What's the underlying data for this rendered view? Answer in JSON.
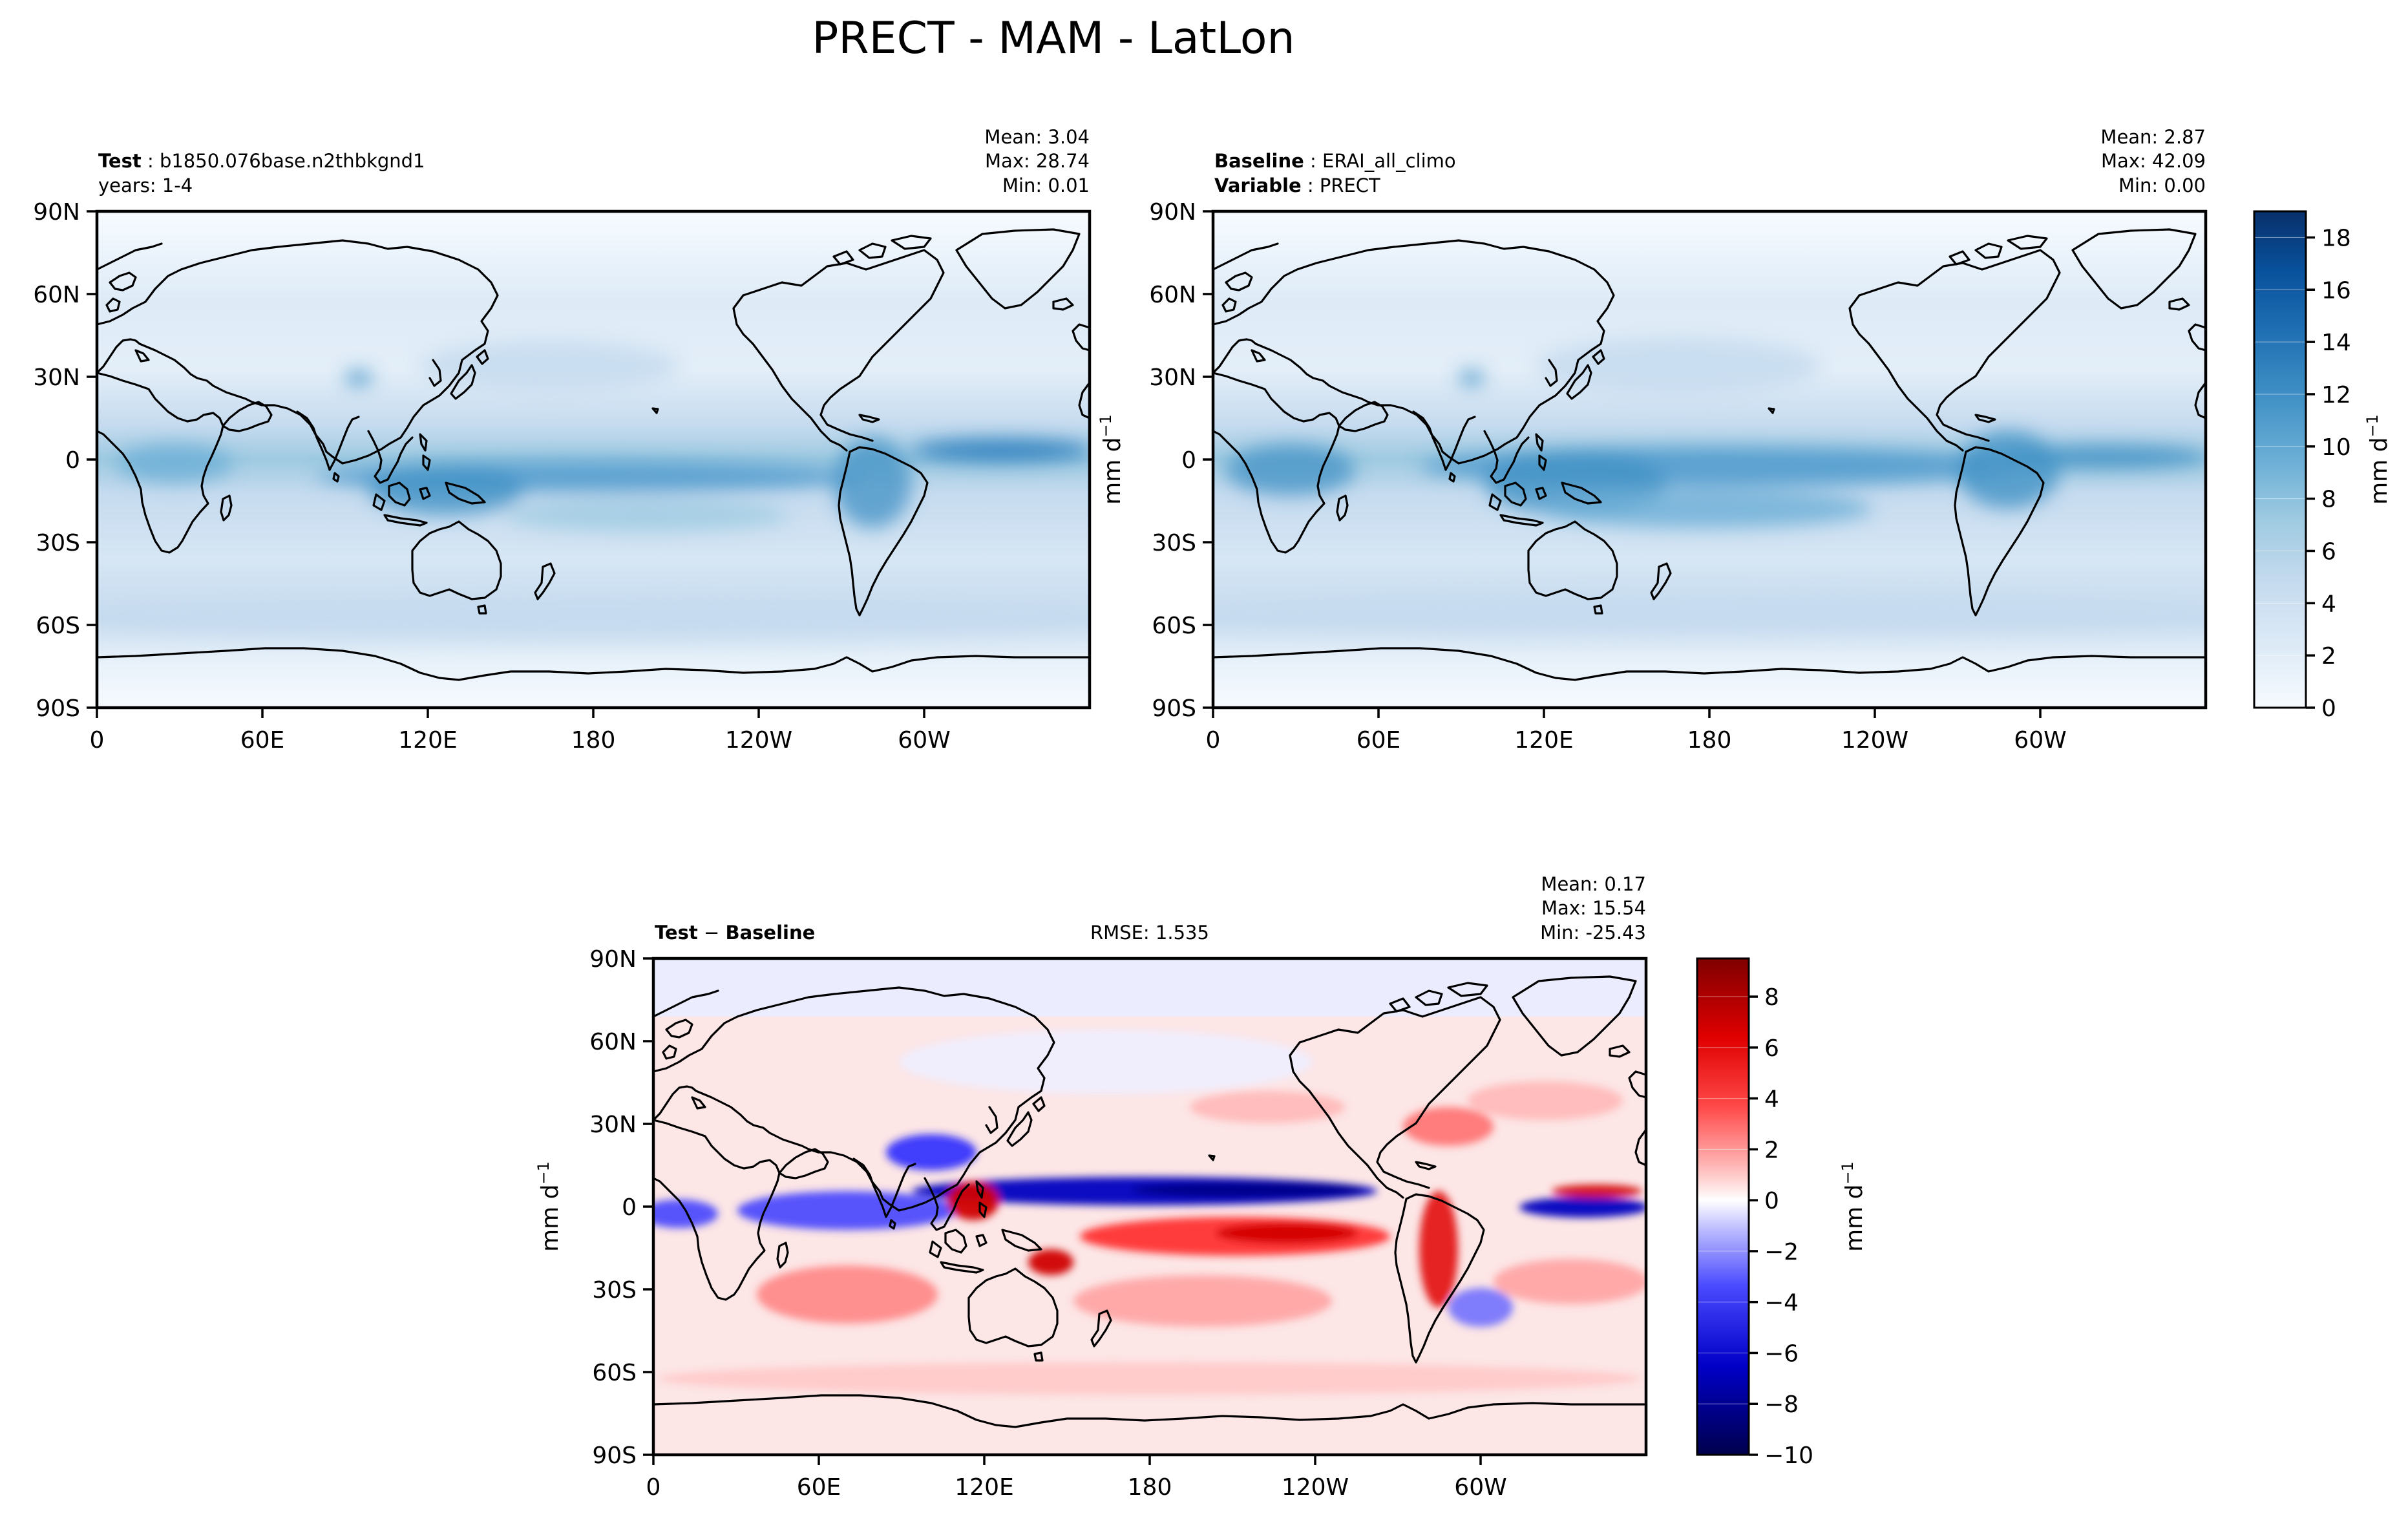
{
  "figure": {
    "suptitle": "PRECT - MAM - LatLon"
  },
  "chart_data": [
    {
      "type": "heatmap",
      "panel": "test",
      "label_bold": "Test",
      "label_value": "b1850.076base.n2thbkgnd1",
      "sub_label": "years: 1-4",
      "stats": {
        "mean_label": "Mean:  3.04",
        "max_label": "Max: 28.74",
        "min_label": "Min:  0.01",
        "mean": 3.04,
        "max": 28.74,
        "min": 0.01
      },
      "x_ticks": [
        "0",
        "60E",
        "120E",
        "180",
        "120W",
        "60W"
      ],
      "y_ticks": [
        "90N",
        "60N",
        "30N",
        "0",
        "30S",
        "60S",
        "90S"
      ],
      "xlim": [
        0,
        360
      ],
      "ylim": [
        -90,
        90
      ],
      "bands": [
        {
          "lat": 0,
          "lon_range": [
            20,
            40
          ],
          "value": 7
        },
        {
          "lat": -3,
          "lon_range": [
            130,
            260
          ],
          "value": 9
        },
        {
          "lat": 5,
          "lon_range": [
            275,
            360
          ],
          "value": 8
        },
        {
          "lat": 30,
          "lon_range": [
            85,
            100
          ],
          "value": 7
        }
      ]
    },
    {
      "type": "heatmap",
      "panel": "baseline",
      "label_bold": "Baseline",
      "label_value": "ERAI_all_climo",
      "label2_bold": "Variable",
      "label2_value": "PRECT",
      "stats": {
        "mean_label": "Mean:  2.87",
        "max_label": "Max: 42.09",
        "min_label": "Min:  0.00",
        "mean": 2.87,
        "max": 42.09,
        "min": 0.0
      },
      "x_ticks": [
        "0",
        "60E",
        "120E",
        "180",
        "120W",
        "60W"
      ],
      "y_ticks": [
        "90N",
        "60N",
        "30N",
        "0",
        "30S",
        "60S",
        "90S"
      ],
      "xlim": [
        0,
        360
      ],
      "ylim": [
        -90,
        90
      ],
      "colorbar": {
        "label": "mm d",
        "label_sup": "−1",
        "range": [
          0,
          19
        ],
        "ticks": [
          "0",
          "2",
          "4",
          "6",
          "8",
          "10",
          "12",
          "14",
          "16",
          "18"
        ],
        "tick_values": [
          0,
          2,
          4,
          6,
          8,
          10,
          12,
          14,
          16,
          18
        ]
      }
    },
    {
      "type": "heatmap",
      "panel": "difference",
      "label_bold_a": "Test",
      "label_sep": " − ",
      "label_bold_b": "Baseline",
      "rmse_label": "RMSE: 1.535",
      "stats": {
        "mean_label": "Mean:  0.17",
        "max_label": "Max: 15.54",
        "min_label": "Min: -25.43",
        "mean": 0.17,
        "max": 15.54,
        "min": -25.43,
        "rmse": 1.535
      },
      "ylabel": "mm d",
      "ylabel_sup": "−1",
      "x_ticks": [
        "0",
        "60E",
        "120E",
        "180",
        "120W",
        "60W"
      ],
      "y_ticks": [
        "90N",
        "60N",
        "30N",
        "0",
        "30S",
        "60S",
        "90S"
      ],
      "xlim": [
        0,
        360
      ],
      "ylim": [
        -90,
        90
      ],
      "colorbar": {
        "label": "mm d",
        "label_sup": "−1",
        "range": [
          -10,
          9.5
        ],
        "ticks": [
          "−10",
          "−8",
          "−6",
          "−4",
          "−2",
          "0",
          "2",
          "4",
          "6",
          "8"
        ],
        "tick_values": [
          -10,
          -8,
          -6,
          -4,
          -2,
          0,
          2,
          4,
          6,
          8
        ]
      }
    }
  ],
  "colors": {
    "blues": [
      "#f7fbff",
      "#deebf7",
      "#c6dbef",
      "#9ecae1",
      "#6baed6",
      "#4292c6",
      "#2171b5",
      "#08519c",
      "#08306b"
    ],
    "seismic_neg": "#00004d",
    "seismic_pos": "#800000"
  },
  "shared_ylabel": "mm d",
  "shared_ylabel_sup": "−1"
}
